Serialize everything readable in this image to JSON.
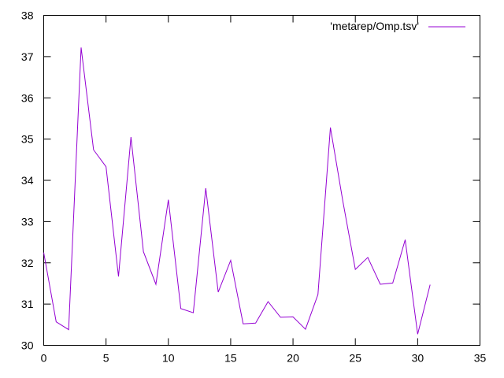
{
  "chart_data": {
    "type": "line",
    "title": "",
    "xlabel": "",
    "ylabel": "",
    "xlim": [
      0,
      35
    ],
    "ylim": [
      30,
      38
    ],
    "xticks": [
      0,
      5,
      10,
      15,
      20,
      25,
      30,
      35
    ],
    "yticks": [
      30,
      31,
      32,
      33,
      34,
      35,
      36,
      37,
      38
    ],
    "grid": false,
    "legend_position": "top-right",
    "series": [
      {
        "name": "'metarep/Omp.tsv'",
        "color": "#9400d3",
        "x": [
          0,
          1,
          2,
          3,
          4,
          5,
          6,
          7,
          8,
          9,
          10,
          11,
          12,
          13,
          14,
          15,
          16,
          17,
          18,
          19,
          20,
          21,
          22,
          23,
          24,
          25,
          26,
          27,
          28,
          29,
          30,
          31
        ],
        "y": [
          32.25,
          30.57,
          30.38,
          37.22,
          34.74,
          34.33,
          31.67,
          35.05,
          32.27,
          31.48,
          33.53,
          30.89,
          30.79,
          33.81,
          31.29,
          32.06,
          30.52,
          30.54,
          31.06,
          30.68,
          30.69,
          30.39,
          31.23,
          35.28,
          33.49,
          31.84,
          32.13,
          31.48,
          31.51,
          32.56,
          30.27,
          31.47
        ]
      }
    ]
  }
}
